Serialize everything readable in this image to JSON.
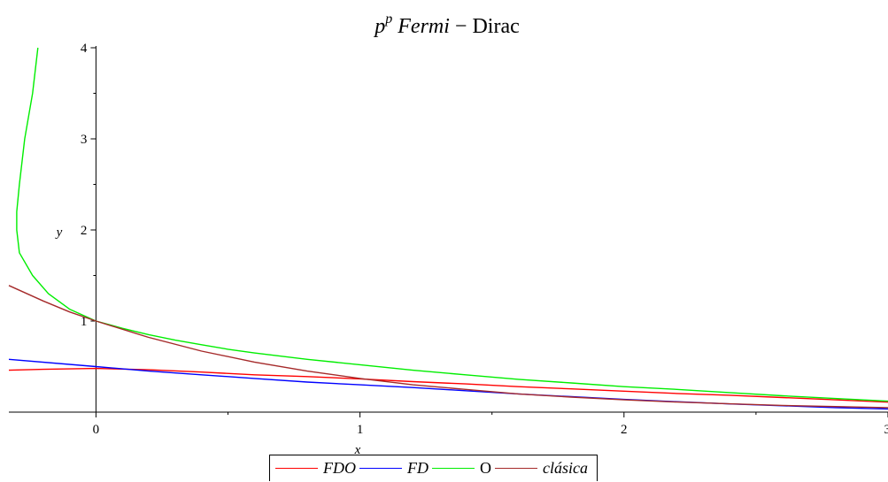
{
  "chart_data": {
    "type": "line",
    "title_base": "p",
    "title_sup": "p",
    "title_italic": "Fermi",
    "title_dash": "−",
    "title_rest": "Dirac",
    "xlabel": "x",
    "ylabel": "y",
    "xlim": [
      -0.33,
      3.0
    ],
    "ylim": [
      0,
      4
    ],
    "x_ticks": [
      {
        "value": 0,
        "label": "0"
      },
      {
        "value": 1,
        "label": "1"
      },
      {
        "value": 2,
        "label": "2"
      },
      {
        "value": 3,
        "label": "3"
      }
    ],
    "y_ticks": [
      {
        "value": 1,
        "label": "1"
      },
      {
        "value": 2,
        "label": "2"
      },
      {
        "value": 3,
        "label": "3"
      },
      {
        "value": 4,
        "label": "4"
      }
    ],
    "grid": false,
    "legend_position": "bottom-center",
    "series": [
      {
        "name": "FDO",
        "color": "#ff0000",
        "points": [
          [
            -0.33,
            0.46
          ],
          [
            -0.2,
            0.47
          ],
          [
            0,
            0.48
          ],
          [
            0.2,
            0.465
          ],
          [
            0.4,
            0.44
          ],
          [
            0.6,
            0.41
          ],
          [
            0.8,
            0.39
          ],
          [
            1.0,
            0.365
          ],
          [
            1.2,
            0.335
          ],
          [
            1.4,
            0.31
          ],
          [
            1.6,
            0.28
          ],
          [
            1.8,
            0.255
          ],
          [
            2.0,
            0.23
          ],
          [
            2.2,
            0.205
          ],
          [
            2.4,
            0.185
          ],
          [
            2.6,
            0.16
          ],
          [
            2.8,
            0.135
          ],
          [
            3.0,
            0.11
          ]
        ]
      },
      {
        "name": "FD",
        "color": "#0000ff",
        "points": [
          [
            -0.33,
            0.58
          ],
          [
            0,
            0.5
          ],
          [
            0.2,
            0.45
          ],
          [
            0.4,
            0.41
          ],
          [
            0.6,
            0.37
          ],
          [
            0.8,
            0.33
          ],
          [
            1.0,
            0.3
          ],
          [
            1.2,
            0.27
          ],
          [
            1.4,
            0.235
          ],
          [
            1.6,
            0.2
          ],
          [
            1.8,
            0.17
          ],
          [
            2.0,
            0.14
          ],
          [
            2.2,
            0.115
          ],
          [
            2.4,
            0.09
          ],
          [
            2.6,
            0.07
          ],
          [
            2.8,
            0.05
          ],
          [
            3.0,
            0.035
          ]
        ]
      },
      {
        "name": "O",
        "color": "#00ee00",
        "points": [
          [
            -0.22,
            4.0
          ],
          [
            -0.24,
            3.5
          ],
          [
            -0.27,
            3.0
          ],
          [
            -0.29,
            2.5
          ],
          [
            -0.3,
            2.2
          ],
          [
            -0.3,
            2.0
          ],
          [
            -0.29,
            1.75
          ],
          [
            -0.24,
            1.5
          ],
          [
            -0.18,
            1.3
          ],
          [
            -0.1,
            1.13
          ],
          [
            0,
            1.0
          ],
          [
            0.1,
            0.92
          ],
          [
            0.2,
            0.85
          ],
          [
            0.3,
            0.79
          ],
          [
            0.4,
            0.74
          ],
          [
            0.5,
            0.69
          ],
          [
            0.6,
            0.65
          ],
          [
            0.8,
            0.58
          ],
          [
            1.0,
            0.52
          ],
          [
            1.2,
            0.46
          ],
          [
            1.4,
            0.41
          ],
          [
            1.6,
            0.36
          ],
          [
            1.8,
            0.32
          ],
          [
            2.0,
            0.28
          ],
          [
            2.2,
            0.25
          ],
          [
            2.4,
            0.215
          ],
          [
            2.6,
            0.18
          ],
          [
            2.8,
            0.15
          ],
          [
            3.0,
            0.12
          ]
        ]
      },
      {
        "name": "clásica",
        "color": "#a52a2a",
        "points": [
          [
            -0.33,
            1.39
          ],
          [
            -0.2,
            1.22
          ],
          [
            -0.1,
            1.1
          ],
          [
            0,
            1.0
          ],
          [
            0.2,
            0.82
          ],
          [
            0.4,
            0.67
          ],
          [
            0.6,
            0.55
          ],
          [
            0.8,
            0.45
          ],
          [
            1.0,
            0.37
          ],
          [
            1.2,
            0.3
          ],
          [
            1.4,
            0.25
          ],
          [
            1.6,
            0.2
          ],
          [
            1.8,
            0.165
          ],
          [
            2.0,
            0.135
          ],
          [
            2.2,
            0.111
          ],
          [
            2.4,
            0.091
          ],
          [
            2.6,
            0.074
          ],
          [
            2.8,
            0.061
          ],
          [
            3.0,
            0.05
          ]
        ]
      }
    ]
  }
}
